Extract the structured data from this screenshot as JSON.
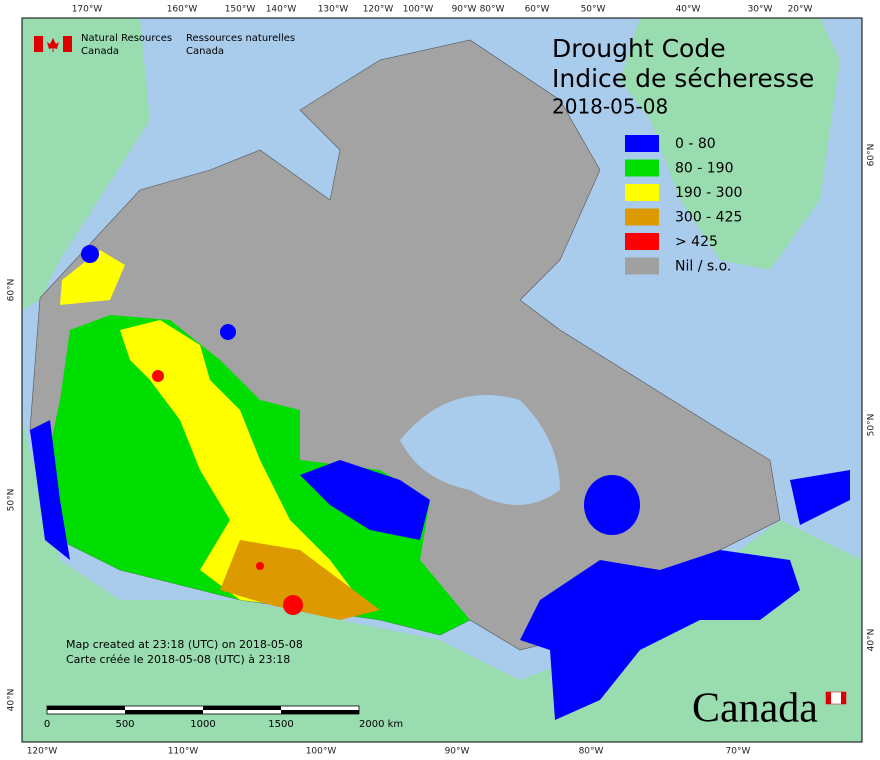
{
  "agency": {
    "en": [
      "Natural Resources",
      "Canada"
    ],
    "fr": [
      "Ressources naturelles",
      "Canada"
    ]
  },
  "title": [
    "Drought Code",
    "Indice de sécheresse"
  ],
  "date": "2018-05-08",
  "legend": [
    {
      "label": "0 - 80",
      "color": "#0000ff"
    },
    {
      "label": "80 - 190",
      "color": "#00dd00"
    },
    {
      "label": "190 - 300",
      "color": "#ffff00"
    },
    {
      "label": "300 - 425",
      "color": "#dd9900"
    },
    {
      "label": "> 425",
      "color": "#ff0000"
    },
    {
      "label": "Nil / s.o.",
      "color": "#a0a0a0"
    }
  ],
  "notes": [
    "Map created at 23:18 (UTC) on 2018-05-08",
    "Carte créée le 2018-05-08 (UTC) à 23:18"
  ],
  "scale_bar": [
    "0",
    "500",
    "1000",
    "1500",
    "2000  km"
  ],
  "wordmark": "Canada",
  "graticule": {
    "top": [
      "170°W",
      "160°W",
      "150°W",
      "140°W",
      "130°W",
      "120°W",
      "100°W",
      "90°W",
      "80°W",
      "60°W",
      "50°W",
      "40°W",
      "30°W",
      "20°W"
    ],
    "bottom": [
      "120°W",
      "110°W",
      "100°W",
      "90°W",
      "80°W",
      "70°W"
    ],
    "left": [
      "60°N",
      "50°N",
      "40°N"
    ],
    "right": [
      "60°N",
      "50°N",
      "40°N"
    ]
  }
}
